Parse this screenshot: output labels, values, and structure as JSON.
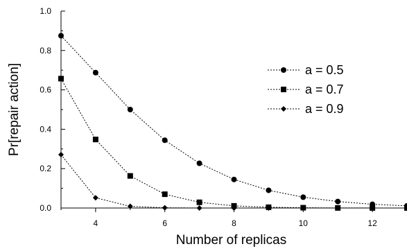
{
  "chart_data": {
    "type": "line",
    "xlabel": "Number of replicas",
    "ylabel": "Pr[repair action]",
    "xlim": [
      3,
      13
    ],
    "ylim": [
      0.0,
      1.0
    ],
    "xticks": [
      4,
      6,
      8,
      10,
      12
    ],
    "yticks": [
      "0.0",
      "0.2",
      "0.4",
      "0.6",
      "0.8",
      "1.0"
    ],
    "grid": false,
    "legend_position": "top-right",
    "series": [
      {
        "name": "a = 0.5",
        "marker": "circle",
        "x": [
          3,
          4,
          5,
          6,
          7,
          8,
          9,
          10,
          11,
          12,
          13
        ],
        "y": [
          0.875,
          0.6875,
          0.5,
          0.344,
          0.227,
          0.145,
          0.09,
          0.055,
          0.033,
          0.019,
          0.011
        ]
      },
      {
        "name": "a = 0.7",
        "marker": "square",
        "x": [
          3,
          4,
          5,
          6,
          7,
          8,
          9,
          10,
          11,
          12,
          13
        ],
        "y": [
          0.657,
          0.348,
          0.163,
          0.07,
          0.029,
          0.011,
          0.004,
          0.0015,
          0.0005,
          0.0002,
          0.0001
        ]
      },
      {
        "name": "a = 0.9",
        "marker": "diamond",
        "x": [
          3,
          4,
          5,
          6,
          7,
          8,
          9,
          10,
          11,
          12,
          13
        ],
        "y": [
          0.271,
          0.052,
          0.0086,
          0.0013,
          0.0002,
          0.0,
          0.0,
          0.0,
          0.0,
          0.0,
          0.0
        ]
      }
    ]
  }
}
